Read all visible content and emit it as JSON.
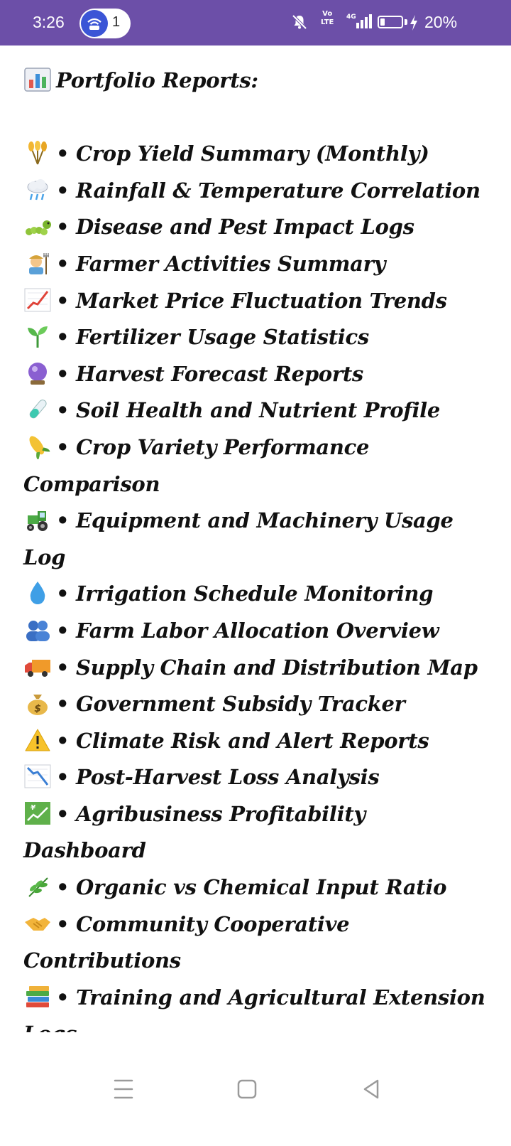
{
  "status_bar": {
    "time": "3:26",
    "hotspot_count": "1",
    "volte_line1": "Vo",
    "volte_line2": "LTE",
    "network": "4G",
    "battery_level": 0.2,
    "battery_text": "20%"
  },
  "message": {
    "heading": "Portfolio Reports:",
    "heading_icon": "bar-chart-emoji",
    "items": [
      {
        "icon": "sheaf-of-rice-emoji",
        "text": "• Crop Yield Summary (Monthly)"
      },
      {
        "icon": "cloud-with-rain-emoji",
        "text": "• Rainfall & Temperature Correlation"
      },
      {
        "icon": "bug-emoji",
        "text": "• Disease and Pest Impact Logs"
      },
      {
        "icon": "farmer-emoji",
        "text": "• Farmer Activities Summary"
      },
      {
        "icon": "chart-increasing-emoji",
        "text": "• Market Price Fluctuation Trends"
      },
      {
        "icon": "seedling-emoji",
        "text": "• Fertilizer Usage Statistics"
      },
      {
        "icon": "crystal-ball-emoji",
        "text": "• Harvest Forecast Reports"
      },
      {
        "icon": "test-tube-emoji",
        "text": "• Soil Health and Nutrient Profile"
      },
      {
        "icon": "ear-of-corn-emoji",
        "text": "• Crop Variety Performance Comparison"
      },
      {
        "icon": "tractor-emoji",
        "text": "• Equipment and Machinery Usage Log"
      },
      {
        "icon": "droplet-emoji",
        "text": "• Irrigation Schedule Monitoring"
      },
      {
        "icon": "people-emoji",
        "text": "• Farm Labor Allocation Overview"
      },
      {
        "icon": "delivery-truck-emoji",
        "text": "• Supply Chain and Distribution Map"
      },
      {
        "icon": "money-bag-emoji",
        "text": "• Government Subsidy Tracker"
      },
      {
        "icon": "warning-emoji",
        "text": "• Climate Risk and Alert Reports"
      },
      {
        "icon": "chart-decreasing-emoji",
        "text": "• Post-Harvest Loss Analysis"
      },
      {
        "icon": "chart-yen-emoji",
        "text": "• Agribusiness Profitability Dashboard"
      },
      {
        "icon": "herb-emoji",
        "text": "• Organic vs Chemical Input Ratio"
      },
      {
        "icon": "handshake-emoji",
        "text": "• Community Cooperative Contributions"
      },
      {
        "icon": "books-emoji",
        "text": "• Training and Agricultural Extension Logs"
      }
    ]
  },
  "nav_bar": {
    "buttons": [
      "menu-icon",
      "home-icon",
      "back-icon"
    ]
  },
  "colors": {
    "status_bar": "#6c4fa8",
    "hotspot_blue": "#3b55d6",
    "text": "#111111",
    "nav_icon": "#9a9a9a"
  }
}
